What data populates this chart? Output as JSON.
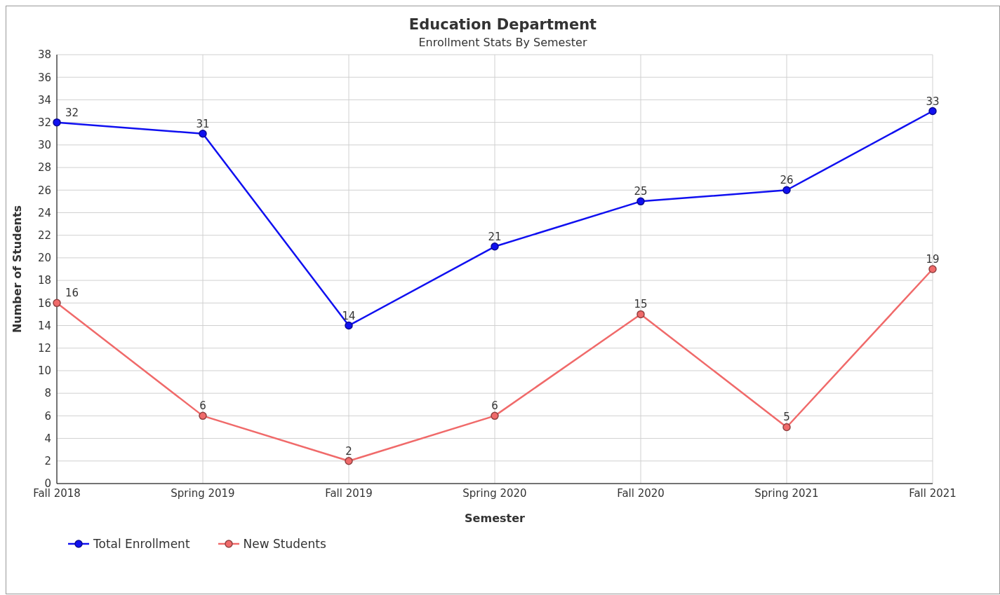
{
  "chart_data": {
    "type": "line",
    "title": "Education Department",
    "subtitle": "Enrollment Stats By Semester",
    "xlabel": "Semester",
    "ylabel": "Number of Students",
    "categories": [
      "Fall 2018",
      "Spring 2019",
      "Fall 2019",
      "Spring 2020",
      "Fall 2020",
      "Spring 2021",
      "Fall 2021"
    ],
    "series": [
      {
        "name": "Total Enrollment",
        "color": "#1010f0",
        "values": [
          32,
          31,
          14,
          21,
          25,
          26,
          33
        ]
      },
      {
        "name": "New Students",
        "color": "#f06a6a",
        "values": [
          16,
          6,
          2,
          6,
          15,
          5,
          19
        ]
      }
    ],
    "ylim": [
      0,
      38
    ],
    "yticks": [
      0,
      2,
      4,
      6,
      8,
      10,
      12,
      14,
      16,
      18,
      20,
      22,
      24,
      26,
      28,
      30,
      32,
      34,
      36,
      38
    ],
    "grid": true,
    "legend": "bottom left",
    "marker": "circle",
    "line_style": "solid",
    "data_labels": true
  }
}
